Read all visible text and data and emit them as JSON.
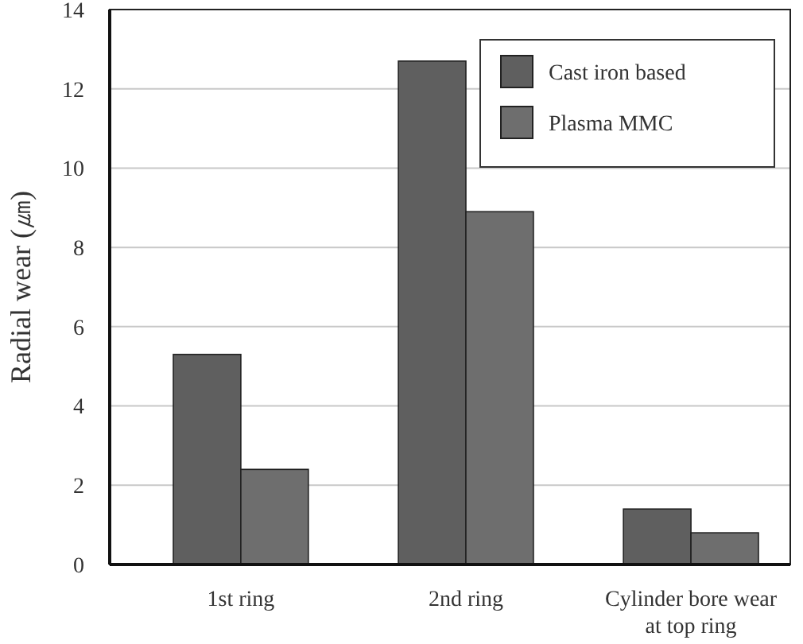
{
  "chart_data": {
    "type": "bar",
    "ylabel": "Radial wear (㎛)",
    "categories": [
      "1st ring",
      "2nd ring",
      "Cylinder bore wear at top ring"
    ],
    "series": [
      {
        "name": "Cast iron based",
        "color": "#5f5f5f",
        "values": [
          5.3,
          12.7,
          1.4
        ]
      },
      {
        "name": "Plasma MMC",
        "color": "#6e6e6e",
        "values": [
          2.4,
          8.9,
          0.8
        ]
      }
    ],
    "ylim": [
      0,
      14
    ],
    "yticks": [
      0,
      2,
      4,
      6,
      8,
      10,
      12,
      14
    ],
    "grid": "y",
    "legend": "top right"
  }
}
